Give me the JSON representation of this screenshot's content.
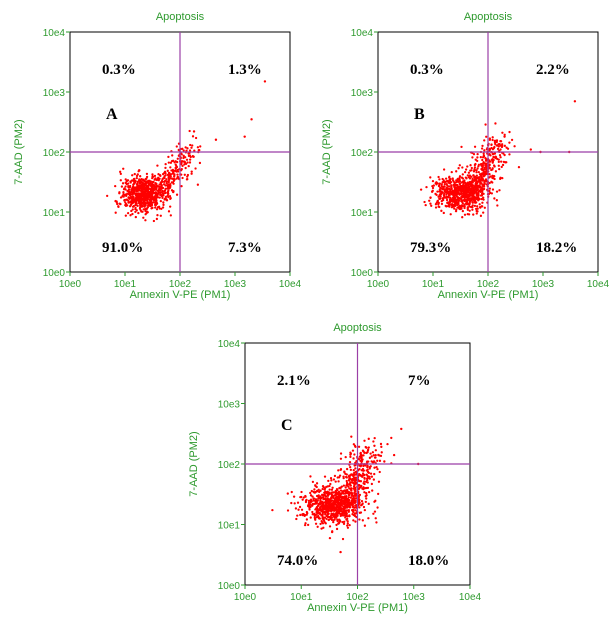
{
  "chart_data": [
    {
      "type": "scatter",
      "title": "Apoptosis",
      "panel_label": "A",
      "xlabel": "Annexin V-PE (PM1)",
      "ylabel": "7-AAD (PM2)",
      "scale": "log",
      "xlim": [
        1,
        10000
      ],
      "ylim": [
        1,
        10000
      ],
      "tick_labels": [
        "10e0",
        "10e1",
        "10e2",
        "10e3",
        "10e4"
      ],
      "gate": {
        "x": 100,
        "y": 100
      },
      "quadrants": {
        "upper_left": "0.3%",
        "upper_right": "1.3%",
        "lower_left": "91.0%",
        "lower_right": "7.3%"
      },
      "marker_color": "#ff0000",
      "population": {
        "count": 900,
        "center": [
          22,
          20
        ],
        "spread_decades": [
          0.2,
          0.15
        ],
        "tail_to": [
          150,
          110
        ],
        "tail_fraction": 0.3,
        "upper_right_outliers": [
          [
            3500,
            1500
          ],
          [
            2000,
            350
          ],
          [
            1500,
            180
          ],
          [
            450,
            160
          ],
          [
            180,
            220
          ]
        ]
      }
    },
    {
      "type": "scatter",
      "title": "Apoptosis",
      "panel_label": "B",
      "xlabel": "Annexin V-PE (PM1)",
      "ylabel": "7-AAD (PM2)",
      "scale": "log",
      "xlim": [
        1,
        10000
      ],
      "ylim": [
        1,
        10000
      ],
      "tick_labels": [
        "10e0",
        "10e1",
        "10e2",
        "10e3",
        "10e4"
      ],
      "gate": {
        "x": 100,
        "y": 100
      },
      "quadrants": {
        "upper_left": "0.3%",
        "upper_right": "2.2%",
        "lower_left": "79.3%",
        "lower_right": "18.2%"
      },
      "marker_color": "#ff0000",
      "population": {
        "count": 1000,
        "center": [
          30,
          20
        ],
        "spread_decades": [
          0.25,
          0.15
        ],
        "tail_to": [
          150,
          150
        ],
        "tail_fraction": 0.4,
        "upper_right_outliers": [
          [
            3800,
            700
          ],
          [
            600,
            110
          ],
          [
            900,
            100
          ],
          [
            200,
            180
          ],
          [
            3000,
            100
          ]
        ]
      }
    },
    {
      "type": "scatter",
      "title": "Apoptosis",
      "panel_label": "C",
      "xlabel": "Annexin V-PE (PM1)",
      "ylabel": "7-AAD (PM2)",
      "scale": "log",
      "xlim": [
        1,
        10000
      ],
      "ylim": [
        1,
        10000
      ],
      "tick_labels": [
        "10e0",
        "10e1",
        "10e2",
        "10e3",
        "10e4"
      ],
      "gate": {
        "x": 100,
        "y": 100
      },
      "quadrants": {
        "upper_left": "2.1%",
        "upper_right": "7%",
        "lower_left": "74.0%",
        "lower_right": "18.0%"
      },
      "marker_color": "#ff0000",
      "population": {
        "count": 1100,
        "center": [
          35,
          20
        ],
        "spread_decades": [
          0.28,
          0.16
        ],
        "tail_to": [
          160,
          170
        ],
        "tail_fraction": 0.4,
        "upper_right_outliers": [
          [
            600,
            380
          ],
          [
            300,
            110
          ],
          [
            200,
            200
          ],
          [
            1200,
            100
          ],
          [
            50,
            3.5
          ]
        ]
      }
    }
  ]
}
